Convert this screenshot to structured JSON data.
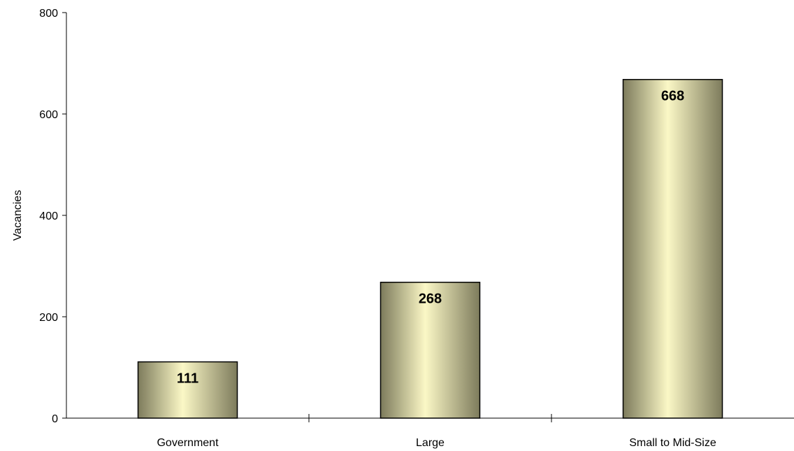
{
  "chart_data": {
    "type": "bar",
    "categories": [
      "Government",
      "Large",
      "Small to Mid-Size"
    ],
    "values": [
      111,
      268,
      668
    ],
    "data_labels": [
      "111",
      "268",
      "668"
    ],
    "title": "",
    "xlabel": "",
    "ylabel": "Vacancies",
    "ylim": [
      0,
      800
    ],
    "yticks": [
      0,
      200,
      400,
      600,
      800
    ],
    "ytick_labels": [
      "0",
      "200",
      "400",
      "600",
      "800"
    ],
    "grid": false,
    "legend": "none",
    "colors": {
      "bar_edge": "#000000",
      "bar_dark": "#7d7b5c",
      "bar_light": "#fbf8c6",
      "axis": "#000000"
    }
  }
}
